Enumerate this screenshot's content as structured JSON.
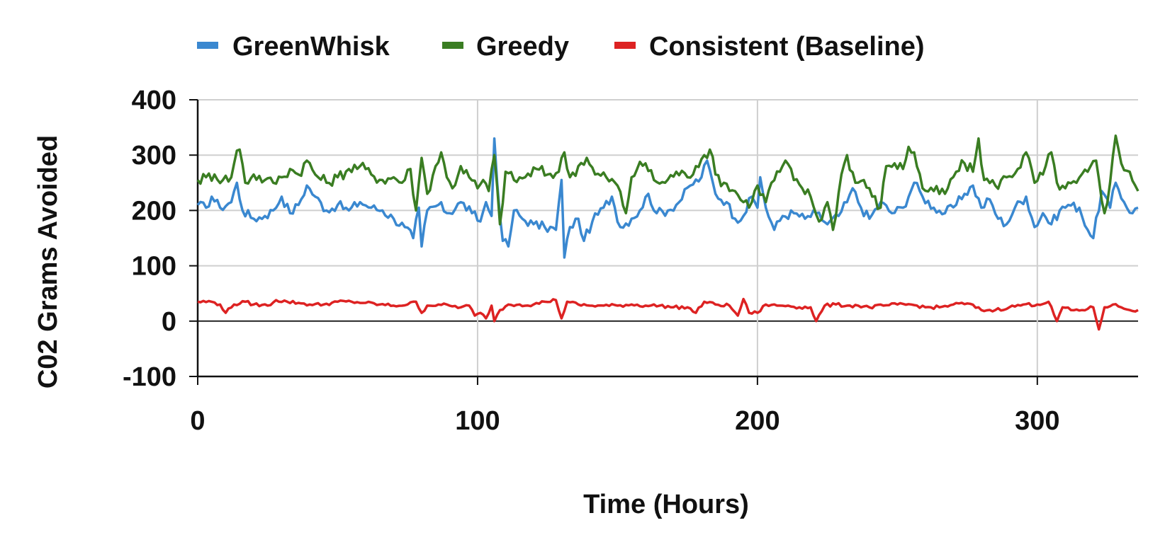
{
  "chart_data": {
    "type": "line",
    "title": "",
    "xlabel": "Time (Hours)",
    "ylabel": "C02 Grams Avoided",
    "xlim": [
      0,
      336
    ],
    "ylim": [
      -100,
      400
    ],
    "x_ticks": [
      0,
      100,
      200,
      300
    ],
    "x_tick_labels": [
      "0",
      "100",
      "200",
      "300"
    ],
    "y_ticks": [
      -100,
      0,
      100,
      200,
      300,
      400
    ],
    "y_tick_labels": [
      "-100",
      "0",
      "100",
      "200",
      "300",
      "400"
    ],
    "grid": true,
    "legend_position": "top",
    "sample_interval_hours": 1,
    "series": [
      {
        "name": "GreenWhisk",
        "color": "#3a88d0",
        "keypoints": [
          [
            0,
            210
          ],
          [
            3,
            205
          ],
          [
            5,
            225
          ],
          [
            8,
            205
          ],
          [
            12,
            215
          ],
          [
            14,
            250
          ],
          [
            16,
            200
          ],
          [
            20,
            185
          ],
          [
            24,
            190
          ],
          [
            27,
            200
          ],
          [
            30,
            225
          ],
          [
            33,
            195
          ],
          [
            36,
            210
          ],
          [
            39,
            245
          ],
          [
            42,
            225
          ],
          [
            46,
            200
          ],
          [
            50,
            210
          ],
          [
            54,
            200
          ],
          [
            58,
            215
          ],
          [
            62,
            205
          ],
          [
            66,
            200
          ],
          [
            70,
            185
          ],
          [
            74,
            170
          ],
          [
            77,
            150
          ],
          [
            79,
            205
          ],
          [
            80,
            135
          ],
          [
            82,
            200
          ],
          [
            86,
            210
          ],
          [
            90,
            195
          ],
          [
            94,
            215
          ],
          [
            98,
            195
          ],
          [
            101,
            180
          ],
          [
            103,
            215
          ],
          [
            105,
            190
          ],
          [
            106,
            330
          ],
          [
            107,
            250
          ],
          [
            109,
            145
          ],
          [
            111,
            135
          ],
          [
            113,
            200
          ],
          [
            116,
            185
          ],
          [
            120,
            175
          ],
          [
            124,
            170
          ],
          [
            128,
            165
          ],
          [
            130,
            255
          ],
          [
            131,
            115
          ],
          [
            133,
            170
          ],
          [
            136,
            185
          ],
          [
            138,
            145
          ],
          [
            141,
            180
          ],
          [
            145,
            205
          ],
          [
            148,
            225
          ],
          [
            151,
            170
          ],
          [
            155,
            185
          ],
          [
            158,
            200
          ],
          [
            161,
            230
          ],
          [
            164,
            195
          ],
          [
            168,
            200
          ],
          [
            172,
            215
          ],
          [
            176,
            245
          ],
          [
            180,
            260
          ],
          [
            182,
            290
          ],
          [
            185,
            230
          ],
          [
            189,
            215
          ],
          [
            192,
            185
          ],
          [
            195,
            190
          ],
          [
            198,
            225
          ],
          [
            200,
            205
          ],
          [
            201,
            260
          ],
          [
            203,
            205
          ],
          [
            206,
            165
          ],
          [
            209,
            190
          ],
          [
            213,
            195
          ],
          [
            217,
            185
          ],
          [
            221,
            195
          ],
          [
            225,
            175
          ],
          [
            229,
            190
          ],
          [
            232,
            215
          ],
          [
            234,
            240
          ],
          [
            237,
            205
          ],
          [
            240,
            185
          ],
          [
            244,
            215
          ],
          [
            248,
            195
          ],
          [
            252,
            205
          ],
          [
            256,
            250
          ],
          [
            259,
            225
          ],
          [
            263,
            205
          ],
          [
            267,
            195
          ],
          [
            271,
            210
          ],
          [
            274,
            230
          ],
          [
            277,
            245
          ],
          [
            280,
            205
          ],
          [
            283,
            220
          ],
          [
            286,
            185
          ],
          [
            289,
            175
          ],
          [
            292,
            205
          ],
          [
            296,
            225
          ],
          [
            299,
            170
          ],
          [
            302,
            195
          ],
          [
            305,
            175
          ],
          [
            308,
            200
          ],
          [
            311,
            210
          ],
          [
            315,
            205
          ],
          [
            318,
            165
          ],
          [
            320,
            150
          ],
          [
            323,
            235
          ],
          [
            326,
            205
          ],
          [
            328,
            250
          ],
          [
            331,
            215
          ],
          [
            334,
            195
          ],
          [
            336,
            205
          ]
        ]
      },
      {
        "name": "Greedy",
        "color": "#3a7d22",
        "keypoints": [
          [
            0,
            255
          ],
          [
            3,
            260
          ],
          [
            6,
            265
          ],
          [
            9,
            255
          ],
          [
            12,
            260
          ],
          [
            14,
            308
          ],
          [
            15,
            310
          ],
          [
            17,
            250
          ],
          [
            20,
            265
          ],
          [
            24,
            255
          ],
          [
            27,
            250
          ],
          [
            30,
            260
          ],
          [
            33,
            275
          ],
          [
            36,
            265
          ],
          [
            39,
            290
          ],
          [
            42,
            265
          ],
          [
            46,
            250
          ],
          [
            50,
            260
          ],
          [
            54,
            275
          ],
          [
            58,
            280
          ],
          [
            62,
            265
          ],
          [
            66,
            255
          ],
          [
            70,
            260
          ],
          [
            73,
            250
          ],
          [
            76,
            275
          ],
          [
            78,
            200
          ],
          [
            80,
            295
          ],
          [
            82,
            230
          ],
          [
            85,
            280
          ],
          [
            87,
            305
          ],
          [
            89,
            260
          ],
          [
            91,
            240
          ],
          [
            94,
            280
          ],
          [
            97,
            260
          ],
          [
            100,
            240
          ],
          [
            102,
            255
          ],
          [
            104,
            235
          ],
          [
            106,
            300
          ],
          [
            108,
            175
          ],
          [
            110,
            270
          ],
          [
            113,
            255
          ],
          [
            117,
            260
          ],
          [
            121,
            275
          ],
          [
            125,
            265
          ],
          [
            129,
            270
          ],
          [
            131,
            305
          ],
          [
            133,
            260
          ],
          [
            136,
            280
          ],
          [
            139,
            295
          ],
          [
            142,
            265
          ],
          [
            146,
            260
          ],
          [
            150,
            245
          ],
          [
            153,
            195
          ],
          [
            155,
            260
          ],
          [
            157,
            275
          ],
          [
            160,
            285
          ],
          [
            163,
            255
          ],
          [
            167,
            250
          ],
          [
            171,
            270
          ],
          [
            175,
            260
          ],
          [
            178,
            280
          ],
          [
            181,
            300
          ],
          [
            183,
            310
          ],
          [
            185,
            265
          ],
          [
            188,
            250
          ],
          [
            192,
            235
          ],
          [
            195,
            215
          ],
          [
            198,
            215
          ],
          [
            200,
            245
          ],
          [
            203,
            215
          ],
          [
            205,
            250
          ],
          [
            208,
            270
          ],
          [
            210,
            290
          ],
          [
            213,
            255
          ],
          [
            216,
            240
          ],
          [
            219,
            225
          ],
          [
            222,
            180
          ],
          [
            225,
            215
          ],
          [
            227,
            165
          ],
          [
            230,
            265
          ],
          [
            232,
            300
          ],
          [
            235,
            250
          ],
          [
            238,
            255
          ],
          [
            241,
            225
          ],
          [
            244,
            205
          ],
          [
            246,
            280
          ],
          [
            249,
            285
          ],
          [
            252,
            275
          ],
          [
            254,
            315
          ],
          [
            256,
            305
          ],
          [
            259,
            240
          ],
          [
            263,
            235
          ],
          [
            267,
            230
          ],
          [
            271,
            270
          ],
          [
            274,
            285
          ],
          [
            277,
            270
          ],
          [
            279,
            330
          ],
          [
            281,
            255
          ],
          [
            285,
            245
          ],
          [
            289,
            260
          ],
          [
            293,
            275
          ],
          [
            296,
            305
          ],
          [
            299,
            250
          ],
          [
            302,
            265
          ],
          [
            305,
            305
          ],
          [
            307,
            250
          ],
          [
            310,
            240
          ],
          [
            314,
            250
          ],
          [
            318,
            270
          ],
          [
            321,
            290
          ],
          [
            324,
            195
          ],
          [
            326,
            250
          ],
          [
            328,
            335
          ],
          [
            330,
            285
          ],
          [
            333,
            270
          ],
          [
            336,
            235
          ]
        ]
      },
      {
        "name": "Consistent (Baseline)",
        "color": "#dd2222",
        "keypoints": [
          [
            0,
            35
          ],
          [
            5,
            35
          ],
          [
            8,
            30
          ],
          [
            10,
            15
          ],
          [
            13,
            30
          ],
          [
            17,
            35
          ],
          [
            20,
            30
          ],
          [
            25,
            28
          ],
          [
            28,
            38
          ],
          [
            32,
            35
          ],
          [
            36,
            33
          ],
          [
            40,
            30
          ],
          [
            45,
            30
          ],
          [
            50,
            35
          ],
          [
            55,
            35
          ],
          [
            60,
            33
          ],
          [
            65,
            30
          ],
          [
            70,
            28
          ],
          [
            75,
            30
          ],
          [
            78,
            35
          ],
          [
            80,
            15
          ],
          [
            82,
            28
          ],
          [
            86,
            30
          ],
          [
            90,
            28
          ],
          [
            94,
            25
          ],
          [
            97,
            28
          ],
          [
            99,
            10
          ],
          [
            101,
            15
          ],
          [
            103,
            5
          ],
          [
            105,
            28
          ],
          [
            106,
            0
          ],
          [
            108,
            20
          ],
          [
            111,
            30
          ],
          [
            115,
            30
          ],
          [
            120,
            30
          ],
          [
            124,
            35
          ],
          [
            128,
            38
          ],
          [
            130,
            5
          ],
          [
            132,
            35
          ],
          [
            136,
            30
          ],
          [
            140,
            28
          ],
          [
            145,
            28
          ],
          [
            150,
            28
          ],
          [
            155,
            30
          ],
          [
            160,
            28
          ],
          [
            165,
            28
          ],
          [
            170,
            25
          ],
          [
            175,
            25
          ],
          [
            178,
            15
          ],
          [
            181,
            35
          ],
          [
            185,
            30
          ],
          [
            190,
            28
          ],
          [
            193,
            10
          ],
          [
            195,
            40
          ],
          [
            197,
            15
          ],
          [
            200,
            15
          ],
          [
            203,
            30
          ],
          [
            207,
            28
          ],
          [
            211,
            28
          ],
          [
            215,
            25
          ],
          [
            219,
            25
          ],
          [
            221,
            0
          ],
          [
            224,
            28
          ],
          [
            228,
            30
          ],
          [
            232,
            28
          ],
          [
            236,
            28
          ],
          [
            240,
            25
          ],
          [
            245,
            28
          ],
          [
            250,
            30
          ],
          [
            255,
            30
          ],
          [
            260,
            25
          ],
          [
            265,
            25
          ],
          [
            270,
            30
          ],
          [
            275,
            32
          ],
          [
            280,
            20
          ],
          [
            285,
            20
          ],
          [
            290,
            25
          ],
          [
            295,
            30
          ],
          [
            300,
            30
          ],
          [
            304,
            35
          ],
          [
            307,
            0
          ],
          [
            309,
            25
          ],
          [
            312,
            20
          ],
          [
            316,
            20
          ],
          [
            320,
            25
          ],
          [
            322,
            -15
          ],
          [
            324,
            25
          ],
          [
            327,
            30
          ],
          [
            330,
            25
          ],
          [
            333,
            20
          ],
          [
            336,
            20
          ]
        ]
      }
    ]
  }
}
